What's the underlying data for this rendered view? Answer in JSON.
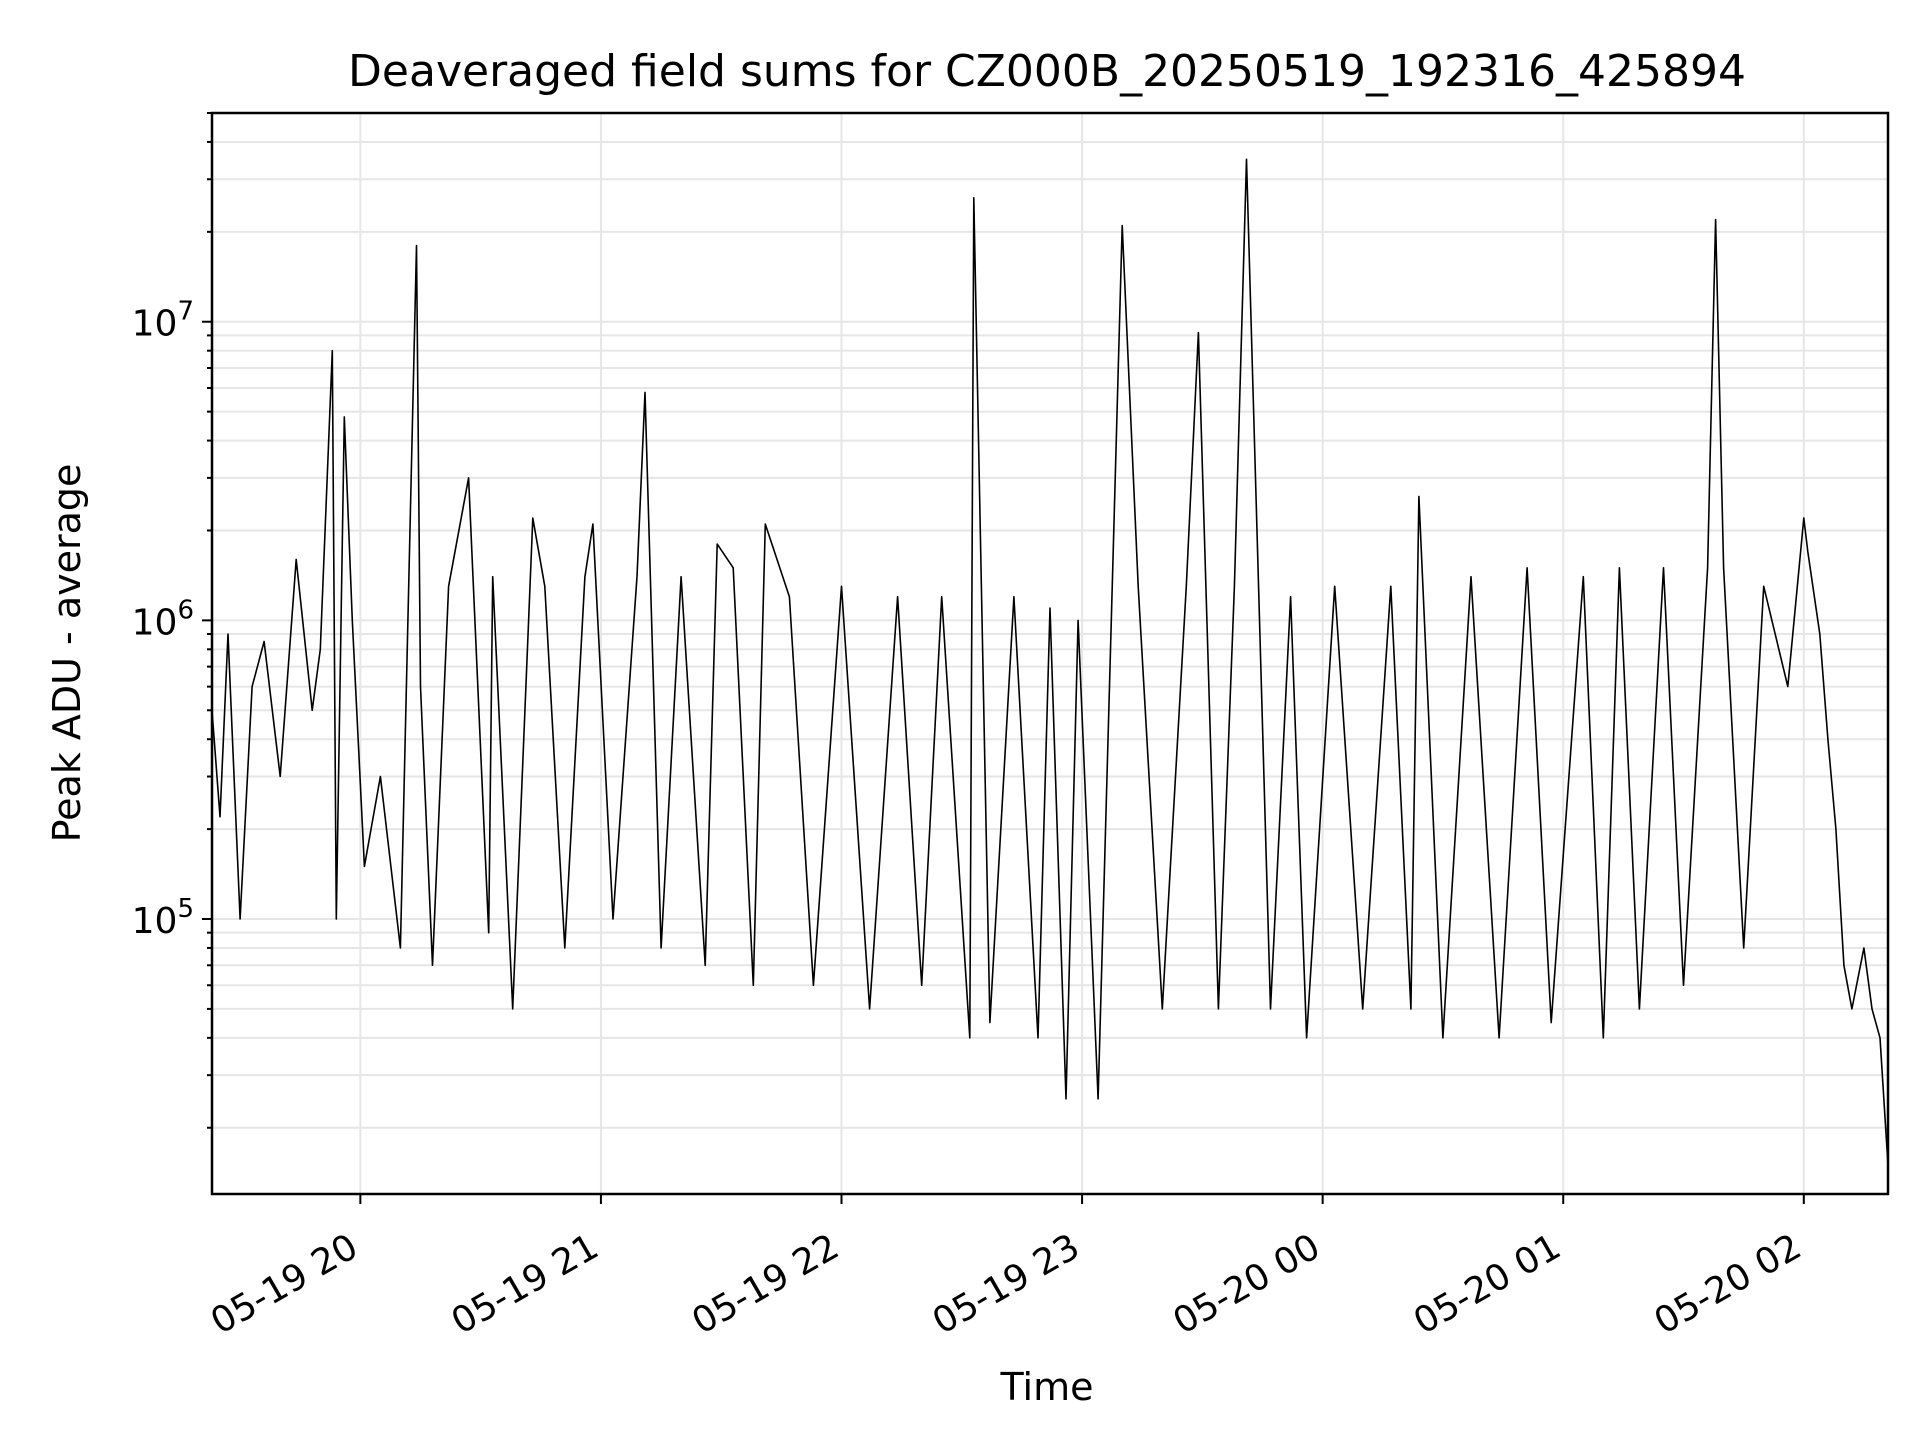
{
  "chart_data": {
    "type": "line",
    "title": "Deaveraged field sums for CZ000B_20250519_192316_425894",
    "xlabel": "Time",
    "ylabel": "Peak ADU - average",
    "x_ticks": [
      "05-19 20",
      "05-19 21",
      "05-19 22",
      "05-19 23",
      "05-20 00",
      "05-20 01",
      "05-20 02"
    ],
    "y_ticks": [
      {
        "base": "10",
        "exp": "5",
        "value": 100000
      },
      {
        "base": "10",
        "exp": "6",
        "value": 1000000
      },
      {
        "base": "10",
        "exp": "7",
        "value": 10000000
      }
    ],
    "xlim": [
      "2025-05-19 19:23",
      "2025-05-20 02:21"
    ],
    "ylim": [
      12000,
      50000000
    ],
    "y_scale": "log",
    "grid": true,
    "line_color": "#000000",
    "grid_color": "#e6e6e6",
    "series": [
      {
        "x": [
          "2025-05-19 19:23",
          "2025-05-19 19:25",
          "2025-05-19 19:27",
          "2025-05-19 19:30",
          "2025-05-19 19:33",
          "2025-05-19 19:36",
          "2025-05-19 19:40",
          "2025-05-19 19:44",
          "2025-05-19 19:48",
          "2025-05-19 19:50",
          "2025-05-19 19:53",
          "2025-05-19 19:54",
          "2025-05-19 19:56",
          "2025-05-19 19:58",
          "2025-05-19 20:01",
          "2025-05-19 20:05",
          "2025-05-19 20:10",
          "2025-05-19 20:14",
          "2025-05-19 20:15",
          "2025-05-19 20:18",
          "2025-05-19 20:22",
          "2025-05-19 20:27",
          "2025-05-19 20:32",
          "2025-05-19 20:33",
          "2025-05-19 20:38",
          "2025-05-19 20:43",
          "2025-05-19 20:46",
          "2025-05-19 20:51",
          "2025-05-19 20:56",
          "2025-05-19 20:58",
          "2025-05-19 21:03",
          "2025-05-19 21:09",
          "2025-05-19 21:11",
          "2025-05-19 21:15",
          "2025-05-19 21:20",
          "2025-05-19 21:26",
          "2025-05-19 21:29",
          "2025-05-19 21:33",
          "2025-05-19 21:38",
          "2025-05-19 21:41",
          "2025-05-19 21:47",
          "2025-05-19 21:53",
          "2025-05-19 22:00",
          "2025-05-19 22:07",
          "2025-05-19 22:14",
          "2025-05-19 22:20",
          "2025-05-19 22:25",
          "2025-05-19 22:32",
          "2025-05-19 22:33",
          "2025-05-19 22:37",
          "2025-05-19 22:43",
          "2025-05-19 22:49",
          "2025-05-19 22:52",
          "2025-05-19 22:56",
          "2025-05-19 22:59",
          "2025-05-19 23:04",
          "2025-05-19 23:10",
          "2025-05-19 23:14",
          "2025-05-19 23:20",
          "2025-05-19 23:26",
          "2025-05-19 23:29",
          "2025-05-19 23:34",
          "2025-05-19 23:38",
          "2025-05-19 23:41",
          "2025-05-19 23:47",
          "2025-05-19 23:52",
          "2025-05-19 23:56",
          "2025-05-20 00:03",
          "2025-05-20 00:10",
          "2025-05-20 00:17",
          "2025-05-20 00:22",
          "2025-05-20 00:24",
          "2025-05-20 00:25",
          "2025-05-20 00:30",
          "2025-05-20 00:37",
          "2025-05-20 00:44",
          "2025-05-20 00:51",
          "2025-05-20 00:57",
          "2025-05-20 01:05",
          "2025-05-20 01:10",
          "2025-05-20 01:14",
          "2025-05-20 01:19",
          "2025-05-20 01:25",
          "2025-05-20 01:30",
          "2025-05-20 01:36",
          "2025-05-20 01:38",
          "2025-05-20 01:40",
          "2025-05-20 01:45",
          "2025-05-20 01:50",
          "2025-05-20 01:56",
          "2025-05-20 02:00",
          "2025-05-20 02:01",
          "2025-05-20 02:04",
          "2025-05-20 02:06",
          "2025-05-20 02:08",
          "2025-05-20 02:10",
          "2025-05-20 02:12",
          "2025-05-20 02:15",
          "2025-05-20 02:17",
          "2025-05-20 02:19",
          "2025-05-20 02:21"
        ],
        "values": [
          500000,
          220000,
          900000,
          100000,
          600000,
          850000,
          300000,
          1600000,
          500000,
          800000,
          8000000,
          100000,
          4800000,
          1000000,
          150000,
          300000,
          80000,
          18000000,
          600000,
          70000,
          1300000,
          3000000,
          90000,
          1400000,
          50000,
          2200000,
          1300000,
          80000,
          1400000,
          2100000,
          100000,
          1400000,
          5800000,
          80000,
          1400000,
          70000,
          1800000,
          1500000,
          60000,
          2100000,
          1200000,
          60000,
          1300000,
          50000,
          1200000,
          60000,
          1200000,
          40000,
          26000000,
          45000,
          1200000,
          40000,
          1100000,
          25000,
          1000000,
          25000,
          21000000,
          1300000,
          50000,
          1300000,
          9200000,
          50000,
          1300000,
          35000000,
          50000,
          1200000,
          40000,
          1300000,
          50000,
          1300000,
          50000,
          2600000,
          1300000,
          40000,
          1400000,
          40000,
          1500000,
          45000,
          1400000,
          40000,
          1500000,
          50000,
          1500000,
          60000,
          1500000,
          22000000,
          1500000,
          80000,
          1300000,
          600000,
          2200000,
          1700000,
          900000,
          400000,
          200000,
          70000,
          50000,
          80000,
          50000,
          40000,
          15000
        ]
      }
    ]
  }
}
